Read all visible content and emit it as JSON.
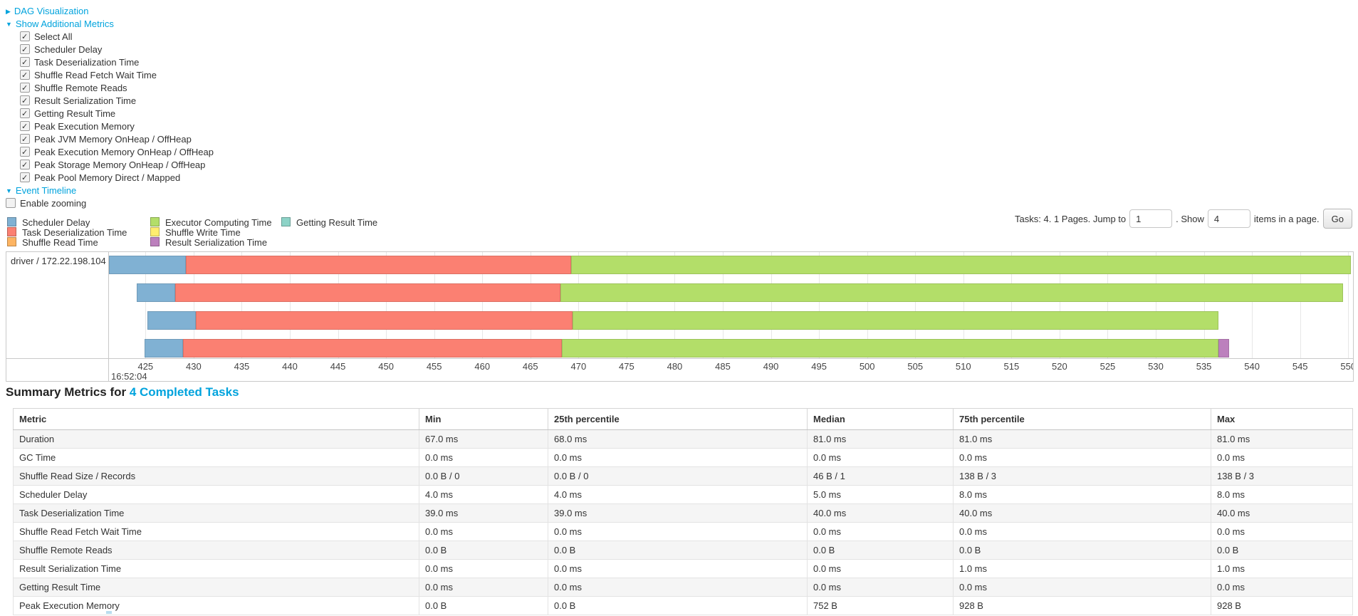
{
  "colors": {
    "link": "#00a3dd",
    "scheduler_delay": "#80B1D3",
    "task_deserialization": "#FB8072",
    "shuffle_read": "#FDB462",
    "executor_computing": "#B3DE69",
    "shuffle_write": "#FFED6F",
    "result_serialization": "#BC80BD",
    "getting_result": "#8DD3C7"
  },
  "controls": {
    "dag_label": "DAG Visualization",
    "metrics_label": "Show Additional Metrics",
    "metric_checkboxes": [
      "Select All",
      "Scheduler Delay",
      "Task Deserialization Time",
      "Shuffle Read Fetch Wait Time",
      "Shuffle Remote Reads",
      "Result Serialization Time",
      "Getting Result Time",
      "Peak Execution Memory",
      "Peak JVM Memory OnHeap / OffHeap",
      "Peak Execution Memory OnHeap / OffHeap",
      "Peak Storage Memory OnHeap / OffHeap",
      "Peak Pool Memory Direct / Mapped"
    ],
    "event_timeline_label": "Event Timeline",
    "enable_zooming_label": "Enable zooming"
  },
  "legend": {
    "rows": [
      [
        {
          "label": "Scheduler Delay",
          "type": "scheduler_delay"
        },
        {
          "label": "Executor Computing Time",
          "type": "executor_computing"
        },
        {
          "label": "Getting Result Time",
          "type": "getting_result"
        }
      ],
      [
        {
          "label": "Task Deserialization Time",
          "type": "task_deserialization"
        },
        {
          "label": "Shuffle Write Time",
          "type": "shuffle_write"
        }
      ],
      [
        {
          "label": "Shuffle Read Time",
          "type": "shuffle_read"
        },
        {
          "label": "Result Serialization Time",
          "type": "result_serialization"
        }
      ]
    ]
  },
  "pagination": {
    "prefix": "Tasks: 4. 1 Pages. Jump to",
    "jump_value": "1",
    "mid": ". Show",
    "show_value": "4",
    "suffix": "items in a page.",
    "go": "Go"
  },
  "timeline": {
    "row_label": "driver / 172.22.198.104",
    "axis": {
      "min": 421.2,
      "max": 550.5,
      "ticks": [
        425,
        430,
        435,
        440,
        445,
        450,
        455,
        460,
        465,
        470,
        475,
        480,
        485,
        490,
        495,
        500,
        505,
        510,
        515,
        520,
        525,
        530,
        535,
        540,
        545,
        550
      ],
      "time_label": "16:52:04"
    },
    "tasks": [
      {
        "segments": [
          {
            "type": "scheduler_delay",
            "start": 421.2,
            "end": 429.2
          },
          {
            "type": "task_deserialization",
            "start": 429.2,
            "end": 469.2
          },
          {
            "type": "executor_computing",
            "start": 469.2,
            "end": 550.3
          }
        ]
      },
      {
        "segments": [
          {
            "type": "scheduler_delay",
            "start": 424.1,
            "end": 428.1
          },
          {
            "type": "task_deserialization",
            "start": 428.1,
            "end": 468.1
          },
          {
            "type": "executor_computing",
            "start": 468.1,
            "end": 549.5
          }
        ]
      },
      {
        "segments": [
          {
            "type": "scheduler_delay",
            "start": 425.2,
            "end": 430.2
          },
          {
            "type": "task_deserialization",
            "start": 430.2,
            "end": 469.4
          },
          {
            "type": "executor_computing",
            "start": 469.4,
            "end": 536.5
          }
        ]
      },
      {
        "segments": [
          {
            "type": "scheduler_delay",
            "start": 424.9,
            "end": 428.9
          },
          {
            "type": "task_deserialization",
            "start": 428.9,
            "end": 468.3
          },
          {
            "type": "executor_computing",
            "start": 468.3,
            "end": 536.5
          },
          {
            "type": "result_serialization",
            "start": 536.5,
            "end": 537.6
          }
        ]
      }
    ]
  },
  "summary": {
    "title_prefix": "Summary Metrics for ",
    "title_link": "4 Completed Tasks",
    "headers": [
      "Metric",
      "Min",
      "25th percentile",
      "Median",
      "75th percentile",
      "Max"
    ],
    "rows": [
      {
        "metric": "Duration",
        "values": [
          "67.0 ms",
          "68.0 ms",
          "81.0 ms",
          "81.0 ms",
          "81.0 ms"
        ]
      },
      {
        "metric": "GC Time",
        "values": [
          "0.0 ms",
          "0.0 ms",
          "0.0 ms",
          "0.0 ms",
          "0.0 ms"
        ]
      },
      {
        "metric": "Shuffle Read Size / Records",
        "values": [
          "0.0 B / 0",
          "0.0 B / 0",
          "46 B / 1",
          "138 B / 3",
          "138 B / 3"
        ]
      },
      {
        "metric": "Scheduler Delay",
        "values": [
          "4.0 ms",
          "4.0 ms",
          "5.0 ms",
          "8.0 ms",
          "8.0 ms"
        ]
      },
      {
        "metric": "Task Deserialization Time",
        "values": [
          "39.0 ms",
          "39.0 ms",
          "40.0 ms",
          "40.0 ms",
          "40.0 ms"
        ]
      },
      {
        "metric": "Shuffle Read Fetch Wait Time",
        "values": [
          "0.0 ms",
          "0.0 ms",
          "0.0 ms",
          "0.0 ms",
          "0.0 ms"
        ]
      },
      {
        "metric": "Shuffle Remote Reads",
        "values": [
          "0.0 B",
          "0.0 B",
          "0.0 B",
          "0.0 B",
          "0.0 B"
        ]
      },
      {
        "metric": "Result Serialization Time",
        "values": [
          "0.0 ms",
          "0.0 ms",
          "0.0 ms",
          "1.0 ms",
          "1.0 ms"
        ]
      },
      {
        "metric": "Getting Result Time",
        "values": [
          "0.0 ms",
          "0.0 ms",
          "0.0 ms",
          "0.0 ms",
          "0.0 ms"
        ]
      },
      {
        "metric": "Peak Execution Memory",
        "values": [
          "0.0 B",
          "0.0 B",
          "752 B",
          "928 B",
          "928 B"
        ]
      }
    ]
  }
}
